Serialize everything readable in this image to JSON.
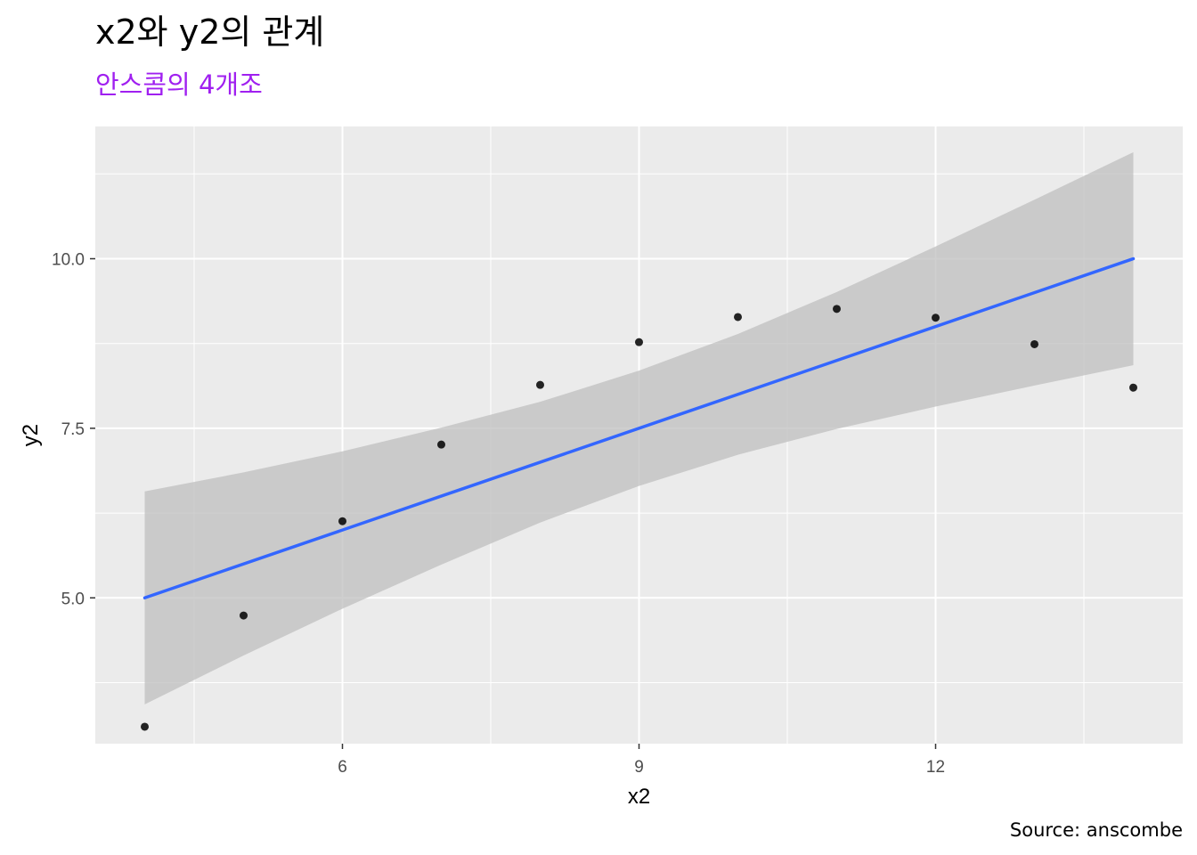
{
  "chart_data": {
    "type": "scatter",
    "title": "x2와 y2의 관계",
    "subtitle": "안스콤의 4개조",
    "caption": "Source: anscombe",
    "xlabel": "x2",
    "ylabel": "y2",
    "xlim": [
      3.5,
      14.5
    ],
    "ylim": [
      2.85,
      11.95
    ],
    "x_ticks": [
      6,
      9,
      12
    ],
    "x_minor": [
      4.5,
      7.5,
      10.5,
      13.5
    ],
    "y_ticks": [
      5.0,
      7.5,
      10.0
    ],
    "y_minor": [
      3.75,
      6.25,
      8.75,
      11.25
    ],
    "grid": true,
    "legend": "none",
    "series": [
      {
        "x": [
          4,
          5,
          6,
          7,
          8,
          9,
          10,
          11,
          12,
          13,
          14
        ],
        "y": [
          3.1,
          4.74,
          6.13,
          7.26,
          8.14,
          8.77,
          9.14,
          9.26,
          9.13,
          8.74,
          8.1
        ],
        "color": "#000000"
      }
    ],
    "trend_line": {
      "method": "lm",
      "x": [
        4,
        14
      ],
      "y": [
        5.0,
        10.0
      ],
      "color": "#3366ff"
    },
    "confidence_band": {
      "x": [
        4,
        5,
        6,
        7,
        8,
        9,
        10,
        11,
        12,
        13,
        14
      ],
      "lower": [
        3.43,
        4.15,
        4.84,
        5.49,
        6.11,
        6.65,
        7.11,
        7.49,
        7.82,
        8.13,
        8.43
      ],
      "upper": [
        6.57,
        6.85,
        7.16,
        7.51,
        7.89,
        8.35,
        8.89,
        9.51,
        10.18,
        10.87,
        11.57
      ],
      "color": "#bfbfbf"
    },
    "colors": {
      "panel_bg": "#ebebeb",
      "grid": "#ffffff",
      "subtitle": "#a020f0",
      "axis_text": "#4d4d4d"
    }
  }
}
